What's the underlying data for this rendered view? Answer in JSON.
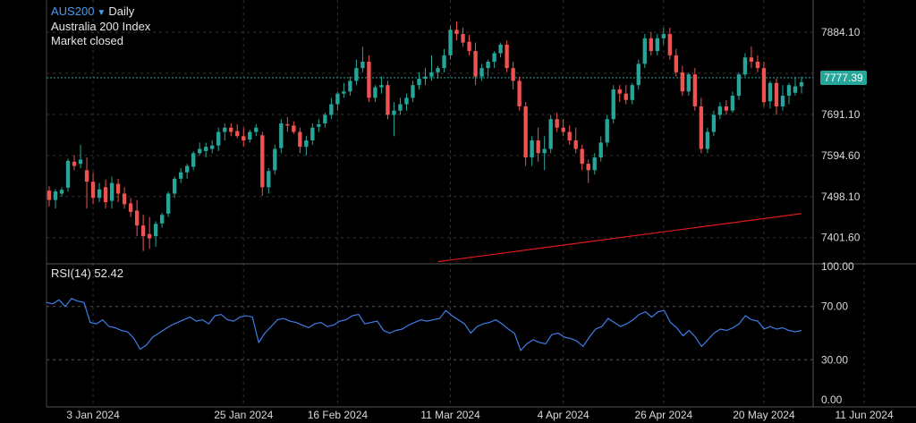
{
  "header": {
    "symbol": "AUS200",
    "dropdown_icon": "triangle-down-icon",
    "timeframe": "Daily",
    "name": "Australia 200 Index",
    "status": "Market closed"
  },
  "colors": {
    "up": "#26a69a",
    "down": "#ef5350",
    "ma_line": "#e0191b",
    "rsi_line": "#3d7ee8",
    "last_price_line": "#26a69a",
    "grid": "#333333"
  },
  "chart_data": [
    {
      "type": "candlestick",
      "title": "AUS200 · Daily",
      "subtitle": "Australia 200 Index",
      "last_price": 7777.39,
      "last_price_label": "7777.39",
      "ylim": [
        7340,
        7960
      ],
      "y_ticks": [
        7884.1,
        7787.6,
        7691.1,
        7594.6,
        7498.1,
        7401.6
      ],
      "y_tick_labels": [
        "7884.10",
        "",
        "7691.10",
        "7594.60",
        "7498.10",
        "7401.60"
      ],
      "x_tick_labels": [
        "3 Jan 2024",
        "25 Jan 2024",
        "16 Feb 2024",
        "11 Mar 2024",
        "4 Apr 2024",
        "26 Apr 2024",
        "20 May 2024",
        "11 Jun 2024"
      ],
      "x_tick_index": [
        7,
        31,
        46,
        64,
        82,
        98,
        114,
        130
      ],
      "grid": true,
      "ohlc": [
        [
          7512,
          7522,
          7475,
          7490
        ],
        [
          7490,
          7515,
          7470,
          7510
        ],
        [
          7505,
          7520,
          7498,
          7514
        ],
        [
          7519,
          7587,
          7510,
          7582
        ],
        [
          7580,
          7595,
          7560,
          7570
        ],
        [
          7575,
          7620,
          7565,
          7585
        ],
        [
          7560,
          7590,
          7470,
          7533
        ],
        [
          7533,
          7555,
          7480,
          7495
        ],
        [
          7495,
          7530,
          7485,
          7515
        ],
        [
          7520,
          7538,
          7470,
          7485
        ],
        [
          7488,
          7545,
          7470,
          7530
        ],
        [
          7528,
          7540,
          7485,
          7505
        ],
        [
          7505,
          7520,
          7470,
          7480
        ],
        [
          7482,
          7495,
          7450,
          7462
        ],
        [
          7465,
          7490,
          7405,
          7430
        ],
        [
          7430,
          7455,
          7370,
          7405
        ],
        [
          7410,
          7450,
          7375,
          7400
        ],
        [
          7405,
          7440,
          7380,
          7434
        ],
        [
          7435,
          7460,
          7425,
          7455
        ],
        [
          7458,
          7510,
          7450,
          7505
        ],
        [
          7505,
          7545,
          7495,
          7540
        ],
        [
          7540,
          7565,
          7530,
          7555
        ],
        [
          7555,
          7575,
          7540,
          7570
        ],
        [
          7568,
          7605,
          7560,
          7600
        ],
        [
          7600,
          7625,
          7595,
          7610
        ],
        [
          7605,
          7625,
          7590,
          7615
        ],
        [
          7610,
          7630,
          7600,
          7618
        ],
        [
          7618,
          7660,
          7605,
          7650
        ],
        [
          7650,
          7670,
          7630,
          7660
        ],
        [
          7660,
          7670,
          7640,
          7650
        ],
        [
          7652,
          7668,
          7635,
          7640
        ],
        [
          7640,
          7660,
          7615,
          7630
        ],
        [
          7632,
          7655,
          7625,
          7650
        ],
        [
          7650,
          7668,
          7640,
          7660
        ],
        [
          7642,
          7650,
          7500,
          7520
        ],
        [
          7520,
          7565,
          7505,
          7558
        ],
        [
          7560,
          7620,
          7550,
          7610
        ],
        [
          7612,
          7680,
          7600,
          7670
        ],
        [
          7668,
          7685,
          7650,
          7665
        ],
        [
          7665,
          7675,
          7645,
          7650
        ],
        [
          7650,
          7660,
          7600,
          7615
        ],
        [
          7615,
          7640,
          7595,
          7630
        ],
        [
          7630,
          7670,
          7620,
          7660
        ],
        [
          7662,
          7680,
          7650,
          7668
        ],
        [
          7670,
          7695,
          7660,
          7690
        ],
        [
          7690,
          7730,
          7680,
          7715
        ],
        [
          7715,
          7745,
          7700,
          7740
        ],
        [
          7740,
          7765,
          7730,
          7745
        ],
        [
          7745,
          7780,
          7735,
          7770
        ],
        [
          7770,
          7820,
          7760,
          7800
        ],
        [
          7800,
          7850,
          7790,
          7815
        ],
        [
          7815,
          7830,
          7720,
          7730
        ],
        [
          7730,
          7760,
          7720,
          7755
        ],
        [
          7755,
          7780,
          7740,
          7760
        ],
        [
          7760,
          7770,
          7680,
          7690
        ],
        [
          7690,
          7720,
          7640,
          7700
        ],
        [
          7700,
          7730,
          7690,
          7715
        ],
        [
          7715,
          7740,
          7700,
          7730
        ],
        [
          7730,
          7770,
          7720,
          7760
        ],
        [
          7760,
          7790,
          7750,
          7775
        ],
        [
          7775,
          7800,
          7760,
          7780
        ],
        [
          7780,
          7830,
          7770,
          7790
        ],
        [
          7790,
          7805,
          7775,
          7800
        ],
        [
          7800,
          7845,
          7790,
          7830
        ],
        [
          7830,
          7900,
          7820,
          7890
        ],
        [
          7890,
          7910,
          7865,
          7880
        ],
        [
          7880,
          7895,
          7850,
          7860
        ],
        [
          7862,
          7878,
          7830,
          7840
        ],
        [
          7840,
          7860,
          7760,
          7780
        ],
        [
          7780,
          7810,
          7770,
          7800
        ],
        [
          7800,
          7820,
          7780,
          7815
        ],
        [
          7815,
          7840,
          7800,
          7835
        ],
        [
          7835,
          7860,
          7825,
          7855
        ],
        [
          7855,
          7865,
          7790,
          7800
        ],
        [
          7800,
          7815,
          7750,
          7770
        ],
        [
          7770,
          7780,
          7700,
          7710
        ],
        [
          7710,
          7720,
          7570,
          7590
        ],
        [
          7590,
          7640,
          7570,
          7630
        ],
        [
          7630,
          7660,
          7580,
          7600
        ],
        [
          7600,
          7640,
          7560,
          7610
        ],
        [
          7610,
          7690,
          7600,
          7680
        ],
        [
          7680,
          7695,
          7650,
          7660
        ],
        [
          7660,
          7680,
          7640,
          7650
        ],
        [
          7650,
          7665,
          7620,
          7630
        ],
        [
          7630,
          7660,
          7600,
          7610
        ],
        [
          7610,
          7620,
          7560,
          7575
        ],
        [
          7575,
          7585,
          7530,
          7560
        ],
        [
          7560,
          7600,
          7550,
          7590
        ],
        [
          7590,
          7640,
          7580,
          7625
        ],
        [
          7625,
          7690,
          7615,
          7680
        ],
        [
          7680,
          7760,
          7670,
          7750
        ],
        [
          7750,
          7760,
          7720,
          7740
        ],
        [
          7740,
          7760,
          7715,
          7725
        ],
        [
          7725,
          7765,
          7715,
          7760
        ],
        [
          7760,
          7820,
          7750,
          7810
        ],
        [
          7810,
          7880,
          7800,
          7870
        ],
        [
          7870,
          7885,
          7830,
          7840
        ],
        [
          7840,
          7880,
          7830,
          7870
        ],
        [
          7870,
          7895,
          7855,
          7880
        ],
        [
          7880,
          7895,
          7820,
          7830
        ],
        [
          7830,
          7845,
          7780,
          7790
        ],
        [
          7790,
          7805,
          7735,
          7745
        ],
        [
          7745,
          7790,
          7735,
          7785
        ],
        [
          7785,
          7800,
          7700,
          7710
        ],
        [
          7710,
          7730,
          7600,
          7610
        ],
        [
          7610,
          7660,
          7600,
          7650
        ],
        [
          7650,
          7700,
          7640,
          7690
        ],
        [
          7690,
          7720,
          7680,
          7710
        ],
        [
          7710,
          7725,
          7690,
          7700
        ],
        [
          7700,
          7745,
          7695,
          7735
        ],
        [
          7735,
          7790,
          7725,
          7785
        ],
        [
          7785,
          7835,
          7780,
          7825
        ],
        [
          7825,
          7850,
          7800,
          7815
        ],
        [
          7815,
          7830,
          7790,
          7800
        ],
        [
          7800,
          7815,
          7710,
          7720
        ],
        [
          7722,
          7770,
          7705,
          7765
        ],
        [
          7765,
          7775,
          7690,
          7710
        ],
        [
          7710,
          7760,
          7700,
          7735
        ],
        [
          7735,
          7765,
          7715,
          7760
        ],
        [
          7742,
          7780,
          7735,
          7757
        ],
        [
          7757,
          7780,
          7740,
          7767
        ]
      ],
      "moving_average": {
        "start_index": 62,
        "start_value": 7345,
        "end_value": 7458
      }
    },
    {
      "type": "line",
      "title": "RSI(14)",
      "value_label": "52.42",
      "ylim": [
        0,
        100
      ],
      "y_ticks": [
        100,
        70,
        30,
        0
      ],
      "y_tick_labels": [
        "100.00",
        "70.00",
        "30.00",
        "0.00"
      ],
      "values": [
        73,
        72,
        75,
        70,
        76,
        74,
        73,
        58,
        57,
        60,
        55,
        54,
        52,
        51,
        46,
        38,
        41,
        47,
        50,
        53,
        56,
        58,
        60,
        62,
        59,
        60,
        57,
        63,
        64,
        60,
        59,
        62,
        63,
        62,
        43,
        50,
        55,
        60,
        61,
        59,
        58,
        56,
        54,
        57,
        58,
        55,
        56,
        59,
        60,
        63,
        64,
        57,
        58,
        59,
        52,
        50,
        52,
        53,
        56,
        58,
        60,
        59,
        60,
        61,
        67,
        63,
        60,
        57,
        50,
        55,
        57,
        58,
        60,
        57,
        53,
        50,
        37,
        42,
        45,
        43,
        42,
        49,
        50,
        47,
        46,
        44,
        40,
        47,
        53,
        55,
        61,
        58,
        55,
        57,
        60,
        64,
        66,
        62,
        66,
        67,
        58,
        54,
        48,
        52,
        47,
        40,
        45,
        50,
        53,
        52,
        54,
        57,
        63,
        60,
        59,
        53,
        55,
        53,
        54,
        52,
        51,
        52
      ]
    }
  ]
}
